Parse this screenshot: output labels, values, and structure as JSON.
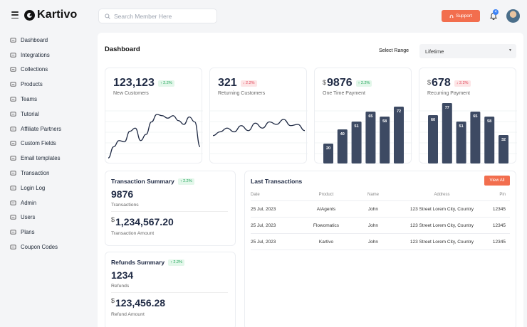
{
  "brand": {
    "name": "Kartivo"
  },
  "search": {
    "placeholder": "Search Member Here"
  },
  "header": {
    "support_label": "Support",
    "notifications_count": "4"
  },
  "sidebar": {
    "items": [
      {
        "label": "Dashboard",
        "icon": "dashboard-icon"
      },
      {
        "label": "Integrations",
        "icon": "integrations-icon"
      },
      {
        "label": "Collections",
        "icon": "collections-icon"
      },
      {
        "label": "Products",
        "icon": "products-icon"
      },
      {
        "label": "Teams",
        "icon": "teams-icon"
      },
      {
        "label": "Tutorial",
        "icon": "video-icon"
      },
      {
        "label": "Affiliate Partners",
        "icon": "affiliate-icon"
      },
      {
        "label": "Custom Fields",
        "icon": "custom-fields-icon"
      },
      {
        "label": "Email templates",
        "icon": "mail-icon"
      },
      {
        "label": "Transaction",
        "icon": "transaction-icon"
      },
      {
        "label": "Login Log",
        "icon": "login-log-icon"
      },
      {
        "label": "Admin",
        "icon": "admin-icon"
      },
      {
        "label": "Users",
        "icon": "users-icon"
      },
      {
        "label": "Plans",
        "icon": "plans-icon"
      },
      {
        "label": "Coupon Codes",
        "icon": "coupon-icon"
      }
    ]
  },
  "dashboard": {
    "title": "Dashboard",
    "range_label": "Select Range",
    "range_value": "Lifetime",
    "stats": [
      {
        "value": "123,123",
        "currency": "",
        "change": "2.2%",
        "trend": "up",
        "label": "New Customers"
      },
      {
        "value": "321",
        "currency": "",
        "change": "2.2%",
        "trend": "down",
        "label": "Returning Customers"
      },
      {
        "value": "9876",
        "currency": "$",
        "change": "2.2%",
        "trend": "up",
        "label": "One Time Payment"
      },
      {
        "value": "678",
        "currency": "$",
        "change": "2.2%",
        "trend": "down",
        "label": "Recurring Payment"
      }
    ],
    "transaction_summary": {
      "title": "Transaction Summary",
      "change": "2.2%",
      "count": "9876",
      "count_label": "Transactions",
      "currency": "$",
      "amount": "1,234,567.20",
      "amount_label": "Transaction Amount"
    },
    "refunds_summary": {
      "title": "Refunds Summary",
      "change": "2.2%",
      "count": "1234",
      "count_label": "Refunds",
      "currency": "$",
      "amount": "123,456.28",
      "amount_label": "Refund Amount"
    },
    "last_transactions": {
      "title": "Last Transactions",
      "view_all_label": "View All",
      "columns": [
        "Date",
        "Product",
        "Name",
        "Address",
        "Pin"
      ],
      "rows": [
        [
          "25 Jul, 2023",
          "AIAgents",
          "John",
          "123 Street Lorem City, Country",
          "12345"
        ],
        [
          "25 Jul, 2023",
          "Flowomatics",
          "John",
          "123 Street Lorem City, Country",
          "12345"
        ],
        [
          "25 Jul, 2023",
          "Kartivo",
          "John",
          "123 Street Lorem City, Country",
          "12345"
        ]
      ]
    }
  },
  "chart_data": [
    {
      "type": "line",
      "series": [
        {
          "values": [
            2,
            20,
            30,
            28,
            45,
            50,
            30,
            40,
            60,
            72,
            70,
            66,
            70,
            62,
            56,
            68,
            60,
            20
          ]
        }
      ]
    },
    {
      "type": "line",
      "series": [
        {
          "values": [
            38,
            44,
            50,
            44,
            54,
            46,
            58,
            50,
            60,
            56,
            64,
            54,
            56,
            46
          ]
        }
      ]
    },
    {
      "type": "bar",
      "categories": [
        "1",
        "2",
        "3",
        "4",
        "5",
        "6"
      ],
      "values": [
        20,
        40,
        51,
        65,
        58,
        72
      ]
    },
    {
      "type": "bar",
      "categories": [
        "1",
        "2",
        "3",
        "4",
        "5",
        "6"
      ],
      "values": [
        60,
        77,
        51,
        65,
        58,
        32
      ]
    }
  ],
  "colors": {
    "accent": "#f26e4e",
    "bar": "#3d4a63",
    "line": "#1f2a44",
    "up": "#22a55b",
    "down": "#e0475a"
  }
}
